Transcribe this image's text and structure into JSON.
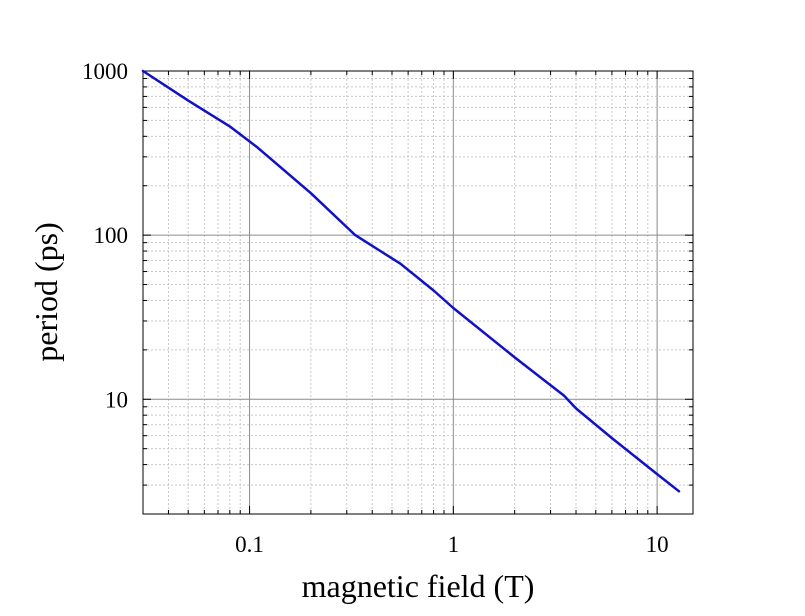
{
  "chart_data": {
    "type": "line",
    "title": "",
    "xlabel": "magnetic field (T)",
    "ylabel": "period (ps)",
    "x_scale": "log",
    "y_scale": "log",
    "xlim": [
      0.03,
      15
    ],
    "ylim": [
      2,
      1000
    ],
    "x_ticks": [
      {
        "value": 0.1,
        "label": "0.1"
      },
      {
        "value": 1,
        "label": "1"
      },
      {
        "value": 10,
        "label": "10"
      }
    ],
    "y_ticks": [
      {
        "value": 10,
        "label": "10"
      },
      {
        "value": 100,
        "label": "100"
      },
      {
        "value": 1000,
        "label": "1000"
      }
    ],
    "grid": true,
    "series": [
      {
        "color": "#1010cc",
        "x": [
          0.03,
          0.05,
          0.08,
          0.11,
          0.2,
          0.33,
          0.55,
          0.8,
          1.0,
          2.0,
          3.5,
          4.0,
          6.0,
          10.0,
          12.8
        ],
        "y": [
          1000,
          660,
          460,
          340,
          180,
          100,
          67,
          46,
          36,
          18,
          10.5,
          8.8,
          5.8,
          3.5,
          2.75
        ]
      }
    ]
  }
}
